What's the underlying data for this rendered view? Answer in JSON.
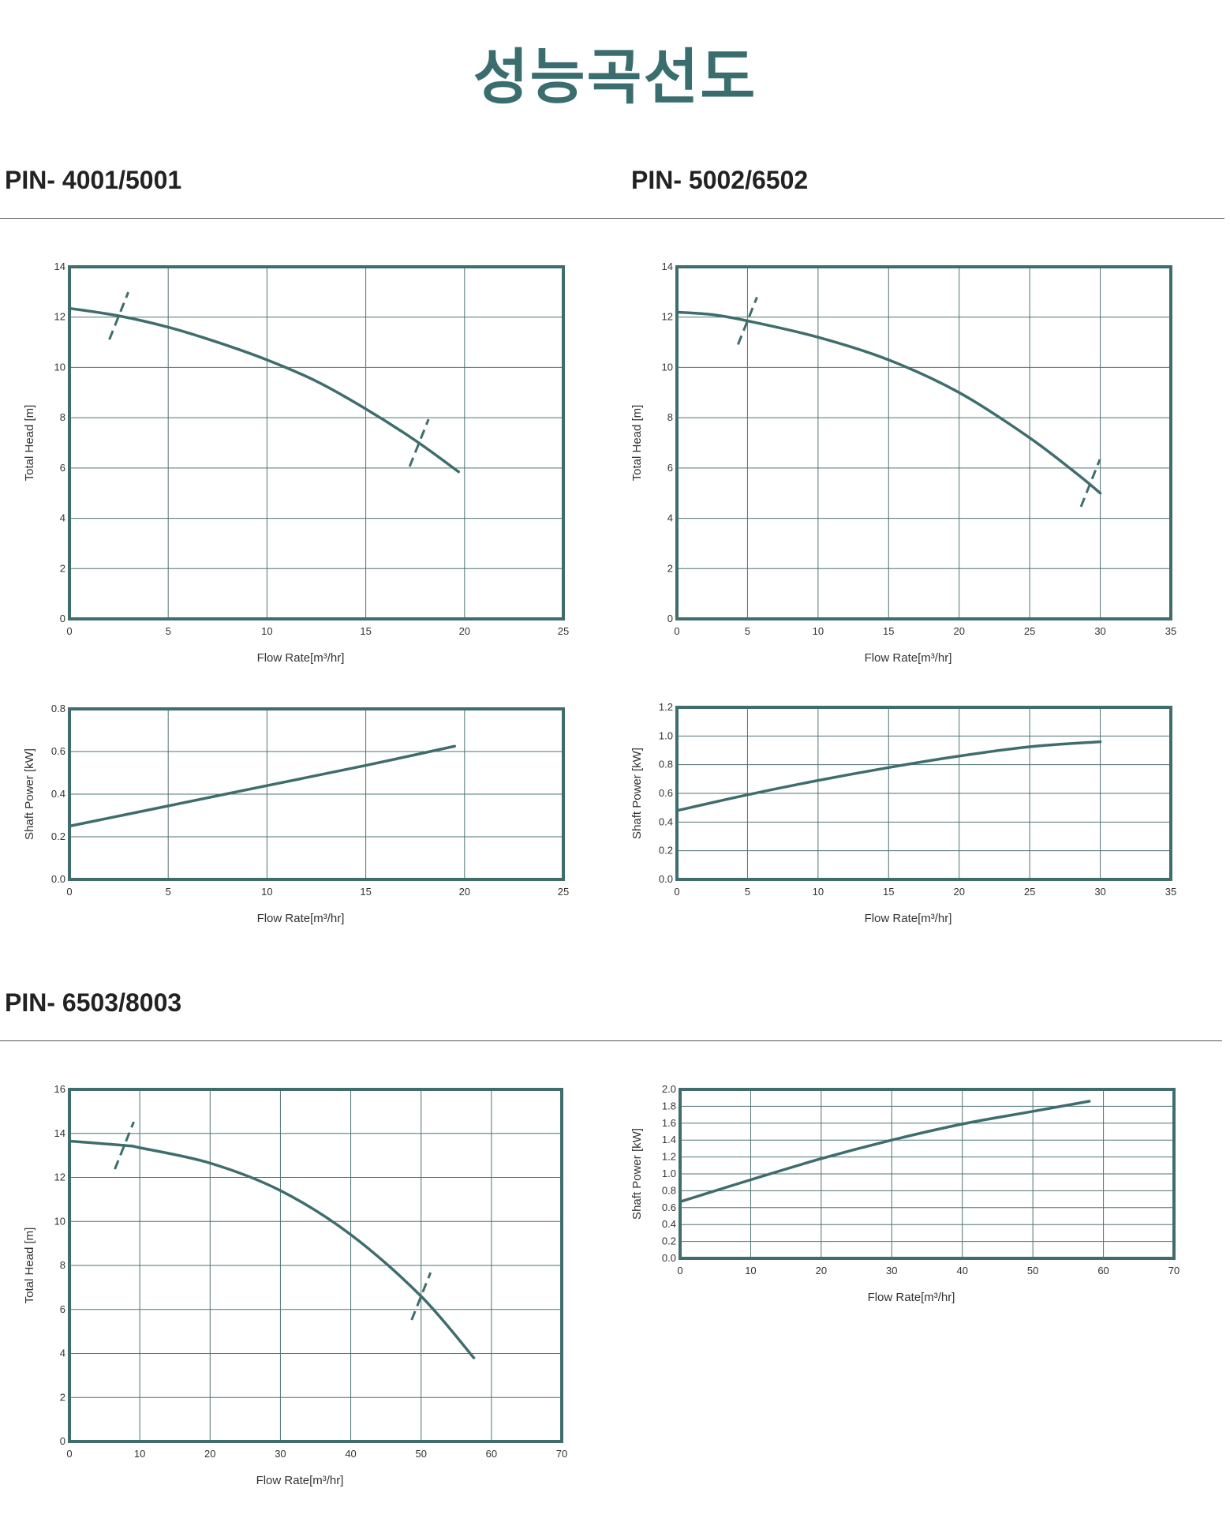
{
  "page_title": "성능곡선도",
  "sections": [
    {
      "title": "PIN- 4001/5001"
    },
    {
      "title": "PIN- 5002/6502"
    },
    {
      "title": "PIN- 6503/8003"
    }
  ],
  "colors": {
    "curve": "#3f6d6d",
    "frame": "#3f6d6d",
    "grid": "#4f7272",
    "title": "#3a6e6e"
  },
  "chart_data": [
    {
      "id": "head-4001",
      "type": "line",
      "model": "PIN- 4001/5001",
      "xlabel": "Flow Rate[m³/hr]",
      "ylabel": "Total Head [m]",
      "xlim": [
        0,
        25
      ],
      "ylim": [
        0,
        14
      ],
      "xticks": [
        "0",
        "5",
        "10",
        "15",
        "20",
        "25"
      ],
      "yticks": [
        "0",
        "2",
        "4",
        "6",
        "8",
        "10",
        "12",
        "14"
      ],
      "grid": true,
      "x": [
        0,
        2.5,
        5,
        7.5,
        10,
        12.5,
        15,
        17.5,
        19.7
      ],
      "y": [
        12.35,
        12.05,
        11.6,
        11.0,
        10.3,
        9.45,
        8.35,
        7.1,
        5.85
      ],
      "operating_range_marks": [
        {
          "x": 2.5,
          "y": 12.05
        },
        {
          "x": 17.7,
          "y": 7.0
        }
      ]
    },
    {
      "id": "power-4001",
      "type": "line",
      "model": "PIN- 4001/5001",
      "xlabel": "Flow Rate[m³/hr]",
      "ylabel": "Shaft Power [kW]",
      "xlim": [
        0,
        25
      ],
      "ylim": [
        0,
        0.8
      ],
      "xticks": [
        "0",
        "5",
        "10",
        "15",
        "20",
        "25"
      ],
      "yticks": [
        "0.0",
        "0.2",
        "0.4",
        "0.6",
        "0.8"
      ],
      "grid": true,
      "x": [
        0,
        5,
        10,
        15,
        19.5
      ],
      "y": [
        0.25,
        0.345,
        0.44,
        0.535,
        0.625
      ]
    },
    {
      "id": "head-5002",
      "type": "line",
      "model": "PIN- 5002/6502",
      "xlabel": "Flow Rate[m³/hr]",
      "ylabel": "Total Head [m]",
      "xlim": [
        0,
        35
      ],
      "ylim": [
        0,
        14
      ],
      "xticks": [
        "0",
        "5",
        "10",
        "15",
        "20",
        "25",
        "30",
        "35"
      ],
      "yticks": [
        "0",
        "2",
        "4",
        "6",
        "8",
        "10",
        "12",
        "14"
      ],
      "grid": true,
      "x": [
        0,
        2.5,
        5,
        10,
        15,
        20,
        25,
        28.5,
        30
      ],
      "y": [
        12.2,
        12.1,
        11.85,
        11.2,
        10.3,
        9.0,
        7.2,
        5.7,
        5.0
      ],
      "operating_range_marks": [
        {
          "x": 5,
          "y": 11.85
        },
        {
          "x": 29.3,
          "y": 5.4
        }
      ]
    },
    {
      "id": "power-5002",
      "type": "line",
      "model": "PIN- 5002/6502",
      "xlabel": "Flow Rate[m³/hr]",
      "ylabel": "Shaft Power [kW]",
      "xlim": [
        0,
        35
      ],
      "ylim": [
        0,
        1.2
      ],
      "xticks": [
        "0",
        "5",
        "10",
        "15",
        "20",
        "25",
        "30",
        "35"
      ],
      "yticks": [
        "0.0",
        "0.2",
        "0.4",
        "0.6",
        "0.8",
        "1.0",
        "1.2"
      ],
      "grid": true,
      "x": [
        0,
        5,
        10,
        15,
        20,
        25,
        30
      ],
      "y": [
        0.48,
        0.59,
        0.69,
        0.78,
        0.86,
        0.925,
        0.96
      ]
    },
    {
      "id": "head-6503",
      "type": "line",
      "model": "PIN- 6503/8003",
      "xlabel": "Flow Rate[m³/hr]",
      "ylabel": "Total Head [m]",
      "xlim": [
        0,
        70
      ],
      "ylim": [
        0,
        16
      ],
      "xticks": [
        "0",
        "10",
        "20",
        "30",
        "40",
        "50",
        "60",
        "70"
      ],
      "yticks": [
        "0",
        "2",
        "4",
        "6",
        "8",
        "10",
        "12",
        "14",
        "16"
      ],
      "grid": true,
      "x": [
        0,
        8,
        10,
        20,
        30,
        40,
        50,
        57.5
      ],
      "y": [
        13.65,
        13.45,
        13.35,
        12.65,
        11.4,
        9.4,
        6.6,
        3.8
      ],
      "operating_range_marks": [
        {
          "x": 7.8,
          "y": 13.45
        },
        {
          "x": 50,
          "y": 6.6
        }
      ]
    },
    {
      "id": "power-6503",
      "type": "line",
      "model": "PIN- 6503/8003",
      "xlabel": "Flow Rate[m³/hr]",
      "ylabel": "Shaft Power [kW]",
      "xlim": [
        0,
        70
      ],
      "ylim": [
        0,
        2.0
      ],
      "xticks": [
        "0",
        "10",
        "20",
        "30",
        "40",
        "50",
        "60",
        "70"
      ],
      "yticks": [
        "0.0",
        "0.2",
        "0.4",
        "0.6",
        "0.8",
        "1.0",
        "1.2",
        "1.4",
        "1.6",
        "1.8",
        "2.0"
      ],
      "grid": true,
      "x": [
        0,
        10,
        20,
        30,
        40,
        50,
        58
      ],
      "y": [
        0.67,
        0.93,
        1.18,
        1.4,
        1.59,
        1.74,
        1.86
      ]
    }
  ]
}
